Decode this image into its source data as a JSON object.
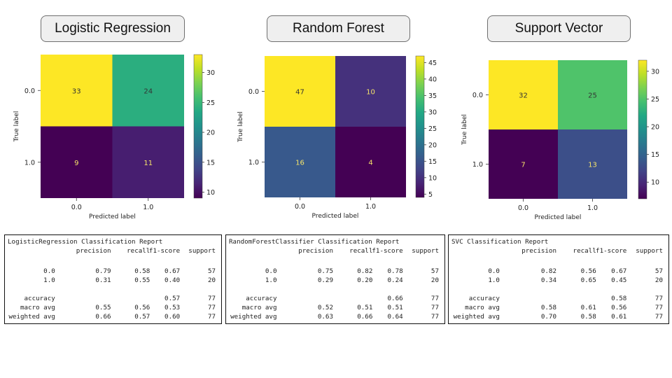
{
  "panels": [
    {
      "id": "lr",
      "title": "Logistic Regression",
      "chart_data": {
        "type": "heatmap",
        "title": "",
        "xlabel": "Predicted label",
        "ylabel": "True label",
        "x_categories": [
          "0.0",
          "1.0"
        ],
        "y_categories": [
          "0.0",
          "1.0"
        ],
        "values": [
          [
            33,
            24
          ],
          [
            9,
            11
          ]
        ],
        "colormap": "viridis",
        "colorbar": {
          "range": [
            9,
            33
          ],
          "ticks": [
            10,
            15,
            20,
            25,
            30
          ]
        }
      },
      "report": {
        "title": "LogisticRegression Classification Report",
        "headers": [
          "precision",
          "recall",
          "f1-score",
          "support"
        ],
        "rows": [
          {
            "label": "0.0",
            "values": [
              "0.79",
              "0.58",
              "0.67",
              "57"
            ]
          },
          {
            "label": "1.0",
            "values": [
              "0.31",
              "0.55",
              "0.40",
              "20"
            ]
          },
          {
            "label": "accuracy",
            "values": [
              "",
              "",
              "0.57",
              "77"
            ]
          },
          {
            "label": "macro avg",
            "values": [
              "0.55",
              "0.56",
              "0.53",
              "77"
            ]
          },
          {
            "label": "weighted avg",
            "values": [
              "0.66",
              "0.57",
              "0.60",
              "77"
            ]
          }
        ]
      }
    },
    {
      "id": "rf",
      "title": "Random Forest",
      "chart_data": {
        "type": "heatmap",
        "title": "",
        "xlabel": "Predicted label",
        "ylabel": "True label",
        "x_categories": [
          "0.0",
          "1.0"
        ],
        "y_categories": [
          "0.0",
          "1.0"
        ],
        "values": [
          [
            47,
            10
          ],
          [
            16,
            4
          ]
        ],
        "colormap": "viridis",
        "colorbar": {
          "range": [
            4,
            47
          ],
          "ticks": [
            5,
            10,
            15,
            20,
            25,
            30,
            35,
            40,
            45
          ]
        }
      },
      "report": {
        "title": "RandomForestClassifier Classification Report",
        "headers": [
          "precision",
          "recall",
          "f1-score",
          "support"
        ],
        "rows": [
          {
            "label": "0.0",
            "values": [
              "0.75",
              "0.82",
              "0.78",
              "57"
            ]
          },
          {
            "label": "1.0",
            "values": [
              "0.29",
              "0.20",
              "0.24",
              "20"
            ]
          },
          {
            "label": "accuracy",
            "values": [
              "",
              "",
              "0.66",
              "77"
            ]
          },
          {
            "label": "macro avg",
            "values": [
              "0.52",
              "0.51",
              "0.51",
              "77"
            ]
          },
          {
            "label": "weighted avg",
            "values": [
              "0.63",
              "0.66",
              "0.64",
              "77"
            ]
          }
        ]
      }
    },
    {
      "id": "svc",
      "title": "Support Vector",
      "chart_data": {
        "type": "heatmap",
        "title": "",
        "xlabel": "Predicted label",
        "ylabel": "True label",
        "x_categories": [
          "0.0",
          "1.0"
        ],
        "y_categories": [
          "0.0",
          "1.0"
        ],
        "values": [
          [
            32,
            25
          ],
          [
            7,
            13
          ]
        ],
        "colormap": "viridis",
        "colorbar": {
          "range": [
            7,
            32
          ],
          "ticks": [
            10,
            15,
            20,
            25,
            30
          ]
        }
      },
      "report": {
        "title": "SVC Classification Report",
        "headers": [
          "precision",
          "recall",
          "f1-score",
          "support"
        ],
        "rows": [
          {
            "label": "0.0",
            "values": [
              "0.82",
              "0.56",
              "0.67",
              "57"
            ]
          },
          {
            "label": "1.0",
            "values": [
              "0.34",
              "0.65",
              "0.45",
              "20"
            ]
          },
          {
            "label": "accuracy",
            "values": [
              "",
              "",
              "0.58",
              "77"
            ]
          },
          {
            "label": "macro avg",
            "values": [
              "0.58",
              "0.61",
              "0.56",
              "77"
            ]
          },
          {
            "label": "weighted avg",
            "values": [
              "0.70",
              "0.58",
              "0.61",
              "77"
            ]
          }
        ]
      }
    }
  ]
}
